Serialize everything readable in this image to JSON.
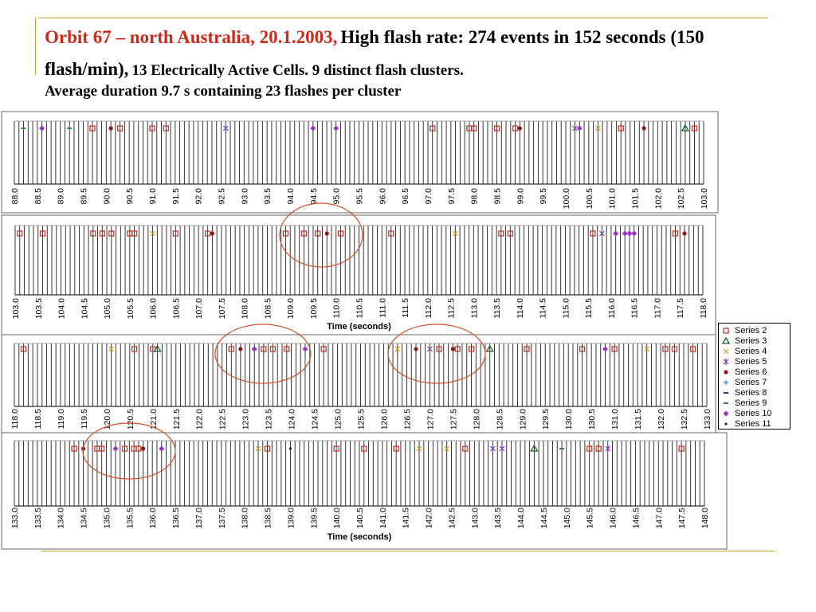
{
  "slide": {
    "title_red": "Orbit 67 – north Australia, 20.1.2003,",
    "title_part2": "High flash rate: 274 events in 152 seconds (150 flash/min),",
    "title_part3": "13 Electrically Active Cells.  9 distinct flash clusters.",
    "title_line3": "Average duration 9.7 s containing 23 flashes per cluster",
    "accent_color": "#c9a227",
    "title_color": "#cc2a1a",
    "circle_color": "#d0502a"
  },
  "chart_data": [
    {
      "type": "scatter",
      "title": "",
      "xlabel": "",
      "ylabel": "",
      "xlim": [
        88.0,
        103.0
      ],
      "tick_labels": [
        "88.0",
        "88.5",
        "89.0",
        "89.5",
        "90.0",
        "90.5",
        "91.0",
        "91.5",
        "92.0",
        "92.5",
        "93.0",
        "93.5",
        "94.0",
        "94.5",
        "95.0",
        "95.5",
        "96.0",
        "96.5",
        "97.0",
        "97.5",
        "98.0",
        "98.5",
        "99.0",
        "99.5",
        "100.0",
        "100.5",
        "101.0",
        "101.5",
        "102.0",
        "102.5",
        "103.0"
      ],
      "grid": true,
      "events": [
        {
          "x": 88.2,
          "series": "Series 9"
        },
        {
          "x": 88.6,
          "series": "Series 10"
        },
        {
          "x": 89.2,
          "series": "Series 9"
        },
        {
          "x": 89.7,
          "series": "Series 2"
        },
        {
          "x": 90.1,
          "series": "Series 6"
        },
        {
          "x": 90.3,
          "series": "Series 2"
        },
        {
          "x": 91.0,
          "series": "Series 2"
        },
        {
          "x": 91.3,
          "series": "Series 2"
        },
        {
          "x": 92.6,
          "series": "Series 5"
        },
        {
          "x": 94.5,
          "series": "Series 10"
        },
        {
          "x": 95.0,
          "series": "Series 10"
        },
        {
          "x": 97.1,
          "series": "Series 2"
        },
        {
          "x": 97.9,
          "series": "Series 2"
        },
        {
          "x": 98.0,
          "series": "Series 2"
        },
        {
          "x": 98.5,
          "series": "Series 2"
        },
        {
          "x": 98.9,
          "series": "Series 2"
        },
        {
          "x": 99.0,
          "series": "Series 6"
        },
        {
          "x": 100.2,
          "series": "Series 5"
        },
        {
          "x": 100.3,
          "series": "Series 10"
        },
        {
          "x": 100.7,
          "series": "Series 4"
        },
        {
          "x": 101.2,
          "series": "Series 2"
        },
        {
          "x": 101.7,
          "series": "Series 6"
        },
        {
          "x": 102.6,
          "series": "Series 3"
        },
        {
          "x": 102.8,
          "series": "Series 2"
        }
      ]
    },
    {
      "type": "scatter",
      "title": "",
      "xlabel": "Time (seconds)",
      "ylabel": "",
      "xlim": [
        103.0,
        118.0
      ],
      "tick_labels": [
        "103.0",
        "103.5",
        "104.0",
        "104.5",
        "105.0",
        "105.5",
        "106.0",
        "106.5",
        "107.0",
        "107.5",
        "108.0",
        "108.5",
        "109.0",
        "109.5",
        "110.0",
        "110.5",
        "111.0",
        "111.5",
        "112.0",
        "112.5",
        "113.0",
        "113.5",
        "114.0",
        "114.5",
        "115.0",
        "115.5",
        "116.0",
        "116.5",
        "117.0",
        "117.5",
        "118.0"
      ],
      "grid": true,
      "events": [
        {
          "x": 103.1,
          "series": "Series 2"
        },
        {
          "x": 103.6,
          "series": "Series 2"
        },
        {
          "x": 104.7,
          "series": "Series 2"
        },
        {
          "x": 104.9,
          "series": "Series 2"
        },
        {
          "x": 105.1,
          "series": "Series 2"
        },
        {
          "x": 105.5,
          "series": "Series 2"
        },
        {
          "x": 105.6,
          "series": "Series 2"
        },
        {
          "x": 106.0,
          "series": "Series 4"
        },
        {
          "x": 106.5,
          "series": "Series 2"
        },
        {
          "x": 107.2,
          "series": "Series 2"
        },
        {
          "x": 107.3,
          "series": "Series 6"
        },
        {
          "x": 108.9,
          "series": "Series 2"
        },
        {
          "x": 109.3,
          "series": "Series 2"
        },
        {
          "x": 109.6,
          "series": "Series 2"
        },
        {
          "x": 109.8,
          "series": "Series 6"
        },
        {
          "x": 110.1,
          "series": "Series 2"
        },
        {
          "x": 111.2,
          "series": "Series 2"
        },
        {
          "x": 112.6,
          "series": "Series 4"
        },
        {
          "x": 113.6,
          "series": "Series 2"
        },
        {
          "x": 113.8,
          "series": "Series 2"
        },
        {
          "x": 115.6,
          "series": "Series 2"
        },
        {
          "x": 115.8,
          "series": "Series 5"
        },
        {
          "x": 116.1,
          "series": "Series 10"
        },
        {
          "x": 116.3,
          "series": "Series 10"
        },
        {
          "x": 116.4,
          "series": "Series 10"
        },
        {
          "x": 116.5,
          "series": "Series 10"
        },
        {
          "x": 117.4,
          "series": "Series 2"
        },
        {
          "x": 117.6,
          "series": "Series 6"
        }
      ]
    },
    {
      "type": "scatter",
      "title": "",
      "xlabel": "",
      "ylabel": "",
      "xlim": [
        118.0,
        133.0
      ],
      "tick_labels": [
        "118.0",
        "118.5",
        "119.0",
        "119.5",
        "120.0",
        "120.5",
        "121.0",
        "121.5",
        "122.0",
        "122.5",
        "123.0",
        "123.5",
        "124.0",
        "124.5",
        "125.0",
        "125.5",
        "126.0",
        "126.5",
        "127.0",
        "127.5",
        "128.0",
        "128.5",
        "129.0",
        "129.5",
        "130.0",
        "130.5",
        "131.0",
        "131.5",
        "132.0",
        "132.5",
        "133.0"
      ],
      "grid": true,
      "events": [
        {
          "x": 118.2,
          "series": "Series 2"
        },
        {
          "x": 120.1,
          "series": "Series 4"
        },
        {
          "x": 120.6,
          "series": "Series 2"
        },
        {
          "x": 121.0,
          "series": "Series 2"
        },
        {
          "x": 121.1,
          "series": "Series 3"
        },
        {
          "x": 122.7,
          "series": "Series 2"
        },
        {
          "x": 122.9,
          "series": "Series 6"
        },
        {
          "x": 123.2,
          "series": "Series 10"
        },
        {
          "x": 123.4,
          "series": "Series 2"
        },
        {
          "x": 123.6,
          "series": "Series 2"
        },
        {
          "x": 123.9,
          "series": "Series 2"
        },
        {
          "x": 124.3,
          "series": "Series 10"
        },
        {
          "x": 124.7,
          "series": "Series 2"
        },
        {
          "x": 126.3,
          "series": "Series 4"
        },
        {
          "x": 126.7,
          "series": "Series 6"
        },
        {
          "x": 127.0,
          "series": "Series 5"
        },
        {
          "x": 127.2,
          "series": "Series 2"
        },
        {
          "x": 127.5,
          "series": "Series 6"
        },
        {
          "x": 127.6,
          "series": "Series 2"
        },
        {
          "x": 127.9,
          "series": "Series 2"
        },
        {
          "x": 128.3,
          "series": "Series 3"
        },
        {
          "x": 129.1,
          "series": "Series 2"
        },
        {
          "x": 130.3,
          "series": "Series 2"
        },
        {
          "x": 130.8,
          "series": "Series 10"
        },
        {
          "x": 131.0,
          "series": "Series 2"
        },
        {
          "x": 131.7,
          "series": "Series 4"
        },
        {
          "x": 132.1,
          "series": "Series 2"
        },
        {
          "x": 132.3,
          "series": "Series 2"
        },
        {
          "x": 132.7,
          "series": "Series 2"
        }
      ]
    },
    {
      "type": "scatter",
      "title": "",
      "xlabel": "Time (seconds)",
      "ylabel": "",
      "xlim": [
        133.0,
        148.0
      ],
      "tick_labels": [
        "133.0",
        "133.5",
        "134.0",
        "134.5",
        "135.0",
        "135.5",
        "136.0",
        "136.5",
        "137.0",
        "137.5",
        "138.0",
        "138.5",
        "139.0",
        "139.5",
        "140.0",
        "140.5",
        "141.0",
        "141.5",
        "142.0",
        "142.5",
        "143.0",
        "143.5",
        "144.0",
        "144.5",
        "145.0",
        "145.5",
        "146.0",
        "146.5",
        "147.0",
        "147.5",
        "148.0"
      ],
      "grid": true,
      "events": [
        {
          "x": 134.3,
          "series": "Series 2"
        },
        {
          "x": 134.5,
          "series": "Series 6"
        },
        {
          "x": 134.8,
          "series": "Series 2"
        },
        {
          "x": 134.9,
          "series": "Series 2"
        },
        {
          "x": 135.2,
          "series": "Series 10"
        },
        {
          "x": 135.4,
          "series": "Series 2"
        },
        {
          "x": 135.6,
          "series": "Series 2"
        },
        {
          "x": 135.7,
          "series": "Series 2"
        },
        {
          "x": 135.8,
          "series": "Series 6"
        },
        {
          "x": 136.2,
          "series": "Series 10"
        },
        {
          "x": 138.3,
          "series": "Series 4"
        },
        {
          "x": 138.5,
          "series": "Series 2"
        },
        {
          "x": 139.0,
          "series": "Series 11"
        },
        {
          "x": 140.0,
          "series": "Series 2"
        },
        {
          "x": 140.6,
          "series": "Series 2"
        },
        {
          "x": 141.3,
          "series": "Series 2"
        },
        {
          "x": 141.8,
          "series": "Series 4"
        },
        {
          "x": 142.4,
          "series": "Series 4"
        },
        {
          "x": 142.8,
          "series": "Series 2"
        },
        {
          "x": 143.4,
          "series": "Series 5"
        },
        {
          "x": 143.6,
          "series": "Series 5"
        },
        {
          "x": 144.3,
          "series": "Series 3"
        },
        {
          "x": 144.9,
          "series": "Series 9"
        },
        {
          "x": 145.5,
          "series": "Series 2"
        },
        {
          "x": 145.7,
          "series": "Series 2"
        },
        {
          "x": 145.9,
          "series": "Series 5"
        },
        {
          "x": 147.5,
          "series": "Series 2"
        }
      ]
    }
  ],
  "legend": {
    "items": [
      {
        "label": "Series 2",
        "marker": "square",
        "color": "#c0392b"
      },
      {
        "label": "Series 3",
        "marker": "triangle",
        "color": "#1e5e2a"
      },
      {
        "label": "Series 4",
        "marker": "x",
        "color": "#d4a017"
      },
      {
        "label": "Series 5",
        "marker": "star",
        "color": "#7a3fb0"
      },
      {
        "label": "Series 6",
        "marker": "dot",
        "color": "#8b1a1a"
      },
      {
        "label": "Series 7",
        "marker": "plus",
        "color": "#2a8bd1"
      },
      {
        "label": "Series 8",
        "marker": "dash",
        "color": "#1f3fa0"
      },
      {
        "label": "Series 9",
        "marker": "dash",
        "color": "#2e8b3a"
      },
      {
        "label": "Series 10",
        "marker": "diamond",
        "color": "#9b30c8"
      },
      {
        "label": "Series 11",
        "marker": "small-dot",
        "color": "#1a1a6e"
      }
    ]
  }
}
